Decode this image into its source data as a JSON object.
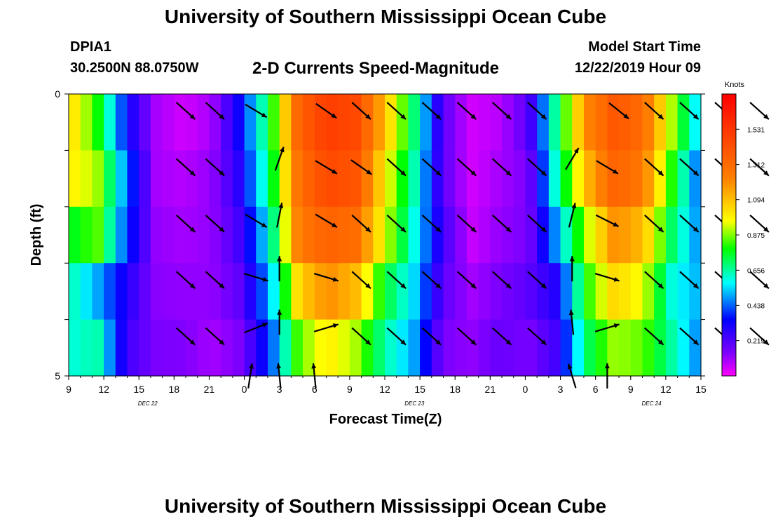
{
  "header": {
    "title": "University of Southern Mississippi Ocean Cube",
    "station_id": "DPIA1",
    "station_coords": "30.2500N 88.0750W",
    "chart_title": "2-D Currents Speed-Magnitude",
    "model_start_label": "Model Start Time",
    "model_start_time": "12/22/2019 Hour 09"
  },
  "footer": {
    "title": "University of Southern Mississippi Ocean Cube"
  },
  "chart_data": {
    "type": "heatmap",
    "xlabel": "Forecast Time(Z)",
    "ylabel": "Depth (ft)",
    "x_ticks": [
      "9",
      "12",
      "15",
      "18",
      "21",
      "0",
      "3",
      "6",
      "9",
      "12",
      "15",
      "18",
      "21",
      "0",
      "3",
      "6",
      "9",
      "12",
      "15"
    ],
    "date_labels": [
      {
        "label": "DEC 22",
        "hour_index": 8
      },
      {
        "label": "DEC 23",
        "hour_index": 35
      },
      {
        "label": "DEC 24",
        "hour_index": 59
      }
    ],
    "hours_total": 54,
    "y_ticks": [
      "0",
      "5"
    ],
    "ylim": [
      0,
      5
    ],
    "colorbar": {
      "unit": "Knots",
      "ticks": [
        "1.531",
        "1.312",
        "1.094",
        "0.875",
        "0.656",
        "0.438",
        "0.219"
      ],
      "max": 1.75
    },
    "depth_layers": 5,
    "profiles": [
      [
        1.05,
        1.0,
        0.75,
        0.65,
        0.6
      ],
      [
        0.8,
        0.9,
        0.85,
        0.5,
        0.65
      ],
      [
        0.35,
        0.45,
        0.4,
        0.3,
        0.25
      ],
      [
        0.1,
        0.1,
        0.12,
        0.13,
        0.15
      ],
      [
        0.05,
        0.08,
        0.1,
        0.12,
        0.14
      ],
      [
        0.1,
        0.12,
        0.12,
        0.12,
        0.1
      ],
      [
        0.35,
        0.3,
        0.25,
        0.2,
        0.15
      ],
      [
        0.75,
        0.7,
        0.6,
        0.5,
        0.4
      ],
      [
        1.35,
        1.3,
        1.25,
        1.05,
        0.85
      ],
      [
        1.5,
        1.45,
        1.35,
        1.2,
        1.0
      ],
      [
        1.45,
        1.4,
        1.3,
        1.1,
        0.9
      ],
      [
        1.1,
        1.0,
        0.95,
        0.75,
        0.65
      ],
      [
        0.7,
        0.65,
        0.6,
        0.55,
        0.5
      ],
      [
        0.2,
        0.2,
        0.25,
        0.2,
        0.15
      ],
      [
        0.05,
        0.05,
        0.06,
        0.1,
        0.12
      ],
      [
        0.08,
        0.1,
        0.12,
        0.15,
        0.18
      ],
      [
        0.2,
        0.15,
        0.15,
        0.2,
        0.15
      ],
      [
        0.7,
        0.65,
        0.5,
        0.3,
        0.25
      ],
      [
        1.2,
        1.1,
        0.9,
        0.8,
        0.7
      ],
      [
        1.4,
        1.35,
        1.2,
        1.05,
        0.9
      ],
      [
        1.3,
        1.25,
        1.1,
        0.95,
        0.85
      ],
      [
        0.9,
        0.8,
        0.7,
        0.6,
        0.65
      ],
      [
        0.5,
        0.4,
        0.45,
        0.5,
        0.45
      ]
    ],
    "vectors": [
      {
        "x": 10,
        "y": 0.15,
        "u": 1,
        "v": -0.9,
        "mag": 0.9
      },
      {
        "x": 12.5,
        "y": 0.15,
        "u": 1,
        "v": -0.9,
        "mag": 0.9
      },
      {
        "x": 16,
        "y": 0.15,
        "u": 1,
        "v": -0.6,
        "mag": 0.9
      },
      {
        "x": 22,
        "y": 0.15,
        "u": 1,
        "v": -0.7,
        "mag": 0.9
      },
      {
        "x": 25,
        "y": 0.15,
        "u": 1,
        "v": -0.9,
        "mag": 0.9
      },
      {
        "x": 28,
        "y": 0.15,
        "u": 1,
        "v": -0.9,
        "mag": 0.9
      },
      {
        "x": 31,
        "y": 0.15,
        "u": 1,
        "v": -0.9,
        "mag": 0.9
      },
      {
        "x": 34,
        "y": 0.15,
        "u": 1,
        "v": -0.9,
        "mag": 0.9
      },
      {
        "x": 37,
        "y": 0.15,
        "u": 1,
        "v": -0.9,
        "mag": 0.9
      },
      {
        "x": 40,
        "y": 0.15,
        "u": 1,
        "v": -0.9,
        "mag": 0.9
      },
      {
        "x": 47,
        "y": 0.15,
        "u": 1,
        "v": -0.8,
        "mag": 0.9
      },
      {
        "x": 50,
        "y": 0.15,
        "u": 1,
        "v": -0.9,
        "mag": 0.9
      },
      {
        "x": 53,
        "y": 0.15,
        "u": 1,
        "v": -0.9,
        "mag": 0.9
      },
      {
        "x": 56,
        "y": 0.15,
        "u": 1,
        "v": -0.9,
        "mag": 0.9
      },
      {
        "x": 59,
        "y": 0.15,
        "u": 1,
        "v": -0.9,
        "mag": 0.9
      },
      {
        "x": 62,
        "y": 0.15,
        "u": 1,
        "v": -0.9,
        "mag": 0.9
      },
      {
        "x": 10,
        "y": 1.15,
        "u": 1,
        "v": -0.9,
        "mag": 0.9
      },
      {
        "x": 12.5,
        "y": 1.15,
        "u": 1,
        "v": -0.9,
        "mag": 0.9
      },
      {
        "x": 18,
        "y": 1.0,
        "u": 0.35,
        "v": 1,
        "mag": 0.9
      },
      {
        "x": 22,
        "y": 1.15,
        "u": 1,
        "v": -0.6,
        "mag": 0.9
      },
      {
        "x": 25,
        "y": 1.15,
        "u": 1,
        "v": -0.7,
        "mag": 0.9
      },
      {
        "x": 28,
        "y": 1.15,
        "u": 1,
        "v": -0.9,
        "mag": 0.9
      },
      {
        "x": 31,
        "y": 1.15,
        "u": 1,
        "v": -0.9,
        "mag": 0.9
      },
      {
        "x": 34,
        "y": 1.15,
        "u": 1,
        "v": -0.9,
        "mag": 0.9
      },
      {
        "x": 37,
        "y": 1.15,
        "u": 1,
        "v": -0.9,
        "mag": 0.9
      },
      {
        "x": 40,
        "y": 1.15,
        "u": 1,
        "v": -0.9,
        "mag": 0.9
      },
      {
        "x": 43,
        "y": 1.0,
        "u": 0.6,
        "v": 1,
        "mag": 0.9
      },
      {
        "x": 46,
        "y": 1.15,
        "u": 1,
        "v": -0.6,
        "mag": 0.9
      },
      {
        "x": 50,
        "y": 1.15,
        "u": 1,
        "v": -0.9,
        "mag": 0.9
      },
      {
        "x": 53,
        "y": 1.15,
        "u": 1,
        "v": -0.9,
        "mag": 0.9
      },
      {
        "x": 56,
        "y": 1.15,
        "u": 1,
        "v": -0.9,
        "mag": 0.9
      },
      {
        "x": 59,
        "y": 1.15,
        "u": 1,
        "v": -0.9,
        "mag": 0.9
      },
      {
        "x": 62,
        "y": 1.15,
        "u": 1,
        "v": -0.9,
        "mag": 0.9
      },
      {
        "x": 10,
        "y": 2.15,
        "u": 1,
        "v": -0.9,
        "mag": 0.9
      },
      {
        "x": 12.5,
        "y": 2.15,
        "u": 1,
        "v": -0.9,
        "mag": 0.9
      },
      {
        "x": 16,
        "y": 2.1,
        "u": 1,
        "v": -0.6,
        "mag": 0.9
      },
      {
        "x": 18,
        "y": 2.0,
        "u": 0.2,
        "v": 1,
        "mag": 0.9
      },
      {
        "x": 22,
        "y": 2.1,
        "u": 1,
        "v": -0.6,
        "mag": 0.9
      },
      {
        "x": 25,
        "y": 2.15,
        "u": 1,
        "v": -0.9,
        "mag": 0.9
      },
      {
        "x": 28,
        "y": 2.15,
        "u": 1,
        "v": -0.9,
        "mag": 0.9
      },
      {
        "x": 31,
        "y": 2.15,
        "u": 1,
        "v": -0.9,
        "mag": 0.9
      },
      {
        "x": 34,
        "y": 2.15,
        "u": 1,
        "v": -0.9,
        "mag": 0.9
      },
      {
        "x": 37,
        "y": 2.15,
        "u": 1,
        "v": -0.9,
        "mag": 0.9
      },
      {
        "x": 40,
        "y": 2.15,
        "u": 1,
        "v": -0.9,
        "mag": 0.9
      },
      {
        "x": 43,
        "y": 2.0,
        "u": 0.25,
        "v": 1,
        "mag": 0.9
      },
      {
        "x": 46,
        "y": 2.1,
        "u": 1,
        "v": -0.5,
        "mag": 0.9
      },
      {
        "x": 50,
        "y": 2.15,
        "u": 1,
        "v": -0.9,
        "mag": 0.9
      },
      {
        "x": 53,
        "y": 2.15,
        "u": 1,
        "v": -0.9,
        "mag": 0.9
      },
      {
        "x": 56,
        "y": 2.15,
        "u": 1,
        "v": -0.9,
        "mag": 0.9
      },
      {
        "x": 59,
        "y": 2.15,
        "u": 1,
        "v": -0.9,
        "mag": 0.9
      },
      {
        "x": 62,
        "y": 2.15,
        "u": 1,
        "v": -0.9,
        "mag": 0.9
      },
      {
        "x": 10,
        "y": 3.15,
        "u": 1,
        "v": -0.9,
        "mag": 0.9
      },
      {
        "x": 12.5,
        "y": 3.15,
        "u": 1,
        "v": -0.9,
        "mag": 0.9
      },
      {
        "x": 16,
        "y": 3.1,
        "u": 1,
        "v": -0.3,
        "mag": 0.9
      },
      {
        "x": 18,
        "y": 2.95,
        "u": 0,
        "v": 1,
        "mag": 0.9
      },
      {
        "x": 22,
        "y": 3.1,
        "u": 1,
        "v": -0.3,
        "mag": 0.9
      },
      {
        "x": 25,
        "y": 3.15,
        "u": 1,
        "v": -0.9,
        "mag": 0.9
      },
      {
        "x": 28,
        "y": 3.15,
        "u": 1,
        "v": -0.9,
        "mag": 0.9
      },
      {
        "x": 31,
        "y": 3.15,
        "u": 1,
        "v": -0.9,
        "mag": 0.9
      },
      {
        "x": 34,
        "y": 3.15,
        "u": 1,
        "v": -0.9,
        "mag": 0.9
      },
      {
        "x": 37,
        "y": 3.15,
        "u": 1,
        "v": -0.9,
        "mag": 0.9
      },
      {
        "x": 40,
        "y": 3.15,
        "u": 1,
        "v": -0.9,
        "mag": 0.9
      },
      {
        "x": 43,
        "y": 2.95,
        "u": 0,
        "v": 1,
        "mag": 0.9
      },
      {
        "x": 46,
        "y": 3.1,
        "u": 1,
        "v": -0.3,
        "mag": 0.9
      },
      {
        "x": 50,
        "y": 3.15,
        "u": 1,
        "v": -0.9,
        "mag": 0.9
      },
      {
        "x": 53,
        "y": 3.15,
        "u": 1,
        "v": -0.9,
        "mag": 0.9
      },
      {
        "x": 56,
        "y": 3.15,
        "u": 1,
        "v": -0.9,
        "mag": 0.9
      },
      {
        "x": 59,
        "y": 3.15,
        "u": 1,
        "v": -0.9,
        "mag": 0.9
      },
      {
        "x": 62,
        "y": 3.15,
        "u": 1,
        "v": -0.9,
        "mag": 0.9
      },
      {
        "x": 10,
        "y": 4.15,
        "u": 1,
        "v": -0.9,
        "mag": 0.9
      },
      {
        "x": 12.5,
        "y": 4.15,
        "u": 1,
        "v": -0.9,
        "mag": 0.9
      },
      {
        "x": 16,
        "y": 4.0,
        "u": 1,
        "v": 0.4,
        "mag": 0.9
      },
      {
        "x": 18,
        "y": 3.9,
        "u": 0,
        "v": 1,
        "mag": 0.9
      },
      {
        "x": 22,
        "y": 4.0,
        "u": 1,
        "v": 0.3,
        "mag": 0.9
      },
      {
        "x": 25,
        "y": 4.15,
        "u": 1,
        "v": -0.9,
        "mag": 0.9
      },
      {
        "x": 28,
        "y": 4.15,
        "u": 1,
        "v": -0.9,
        "mag": 0.9
      },
      {
        "x": 31,
        "y": 4.15,
        "u": 1,
        "v": -0.9,
        "mag": 0.9
      },
      {
        "x": 34,
        "y": 4.15,
        "u": 1,
        "v": -0.9,
        "mag": 0.9
      },
      {
        "x": 37,
        "y": 4.15,
        "u": 1,
        "v": -0.9,
        "mag": 0.9
      },
      {
        "x": 40,
        "y": 4.15,
        "u": 1,
        "v": -0.9,
        "mag": 0.9
      },
      {
        "x": 43,
        "y": 3.9,
        "u": -0.1,
        "v": 1,
        "mag": 0.9
      },
      {
        "x": 46,
        "y": 4.0,
        "u": 1,
        "v": 0.3,
        "mag": 0.9
      },
      {
        "x": 50,
        "y": 4.15,
        "u": 1,
        "v": -0.9,
        "mag": 0.9
      },
      {
        "x": 53,
        "y": 4.15,
        "u": 1,
        "v": -0.9,
        "mag": 0.9
      },
      {
        "x": 56,
        "y": 4.15,
        "u": 1,
        "v": -0.9,
        "mag": 0.9
      },
      {
        "x": 59,
        "y": 4.15,
        "u": 1,
        "v": -0.9,
        "mag": 0.9
      },
      {
        "x": 62,
        "y": 4.15,
        "u": 1,
        "v": -0.9,
        "mag": 0.9
      },
      {
        "x": 15.5,
        "y": 4.85,
        "u": 0.15,
        "v": 1,
        "mag": 0.9
      },
      {
        "x": 18,
        "y": 4.85,
        "u": -0.1,
        "v": 1,
        "mag": 0.9
      },
      {
        "x": 21,
        "y": 4.85,
        "u": -0.1,
        "v": 1,
        "mag": 0.9
      },
      {
        "x": 43,
        "y": 4.85,
        "u": -0.3,
        "v": 1,
        "mag": 0.9
      },
      {
        "x": 46,
        "y": 4.85,
        "u": 0,
        "v": 1,
        "mag": 0.9
      }
    ]
  }
}
